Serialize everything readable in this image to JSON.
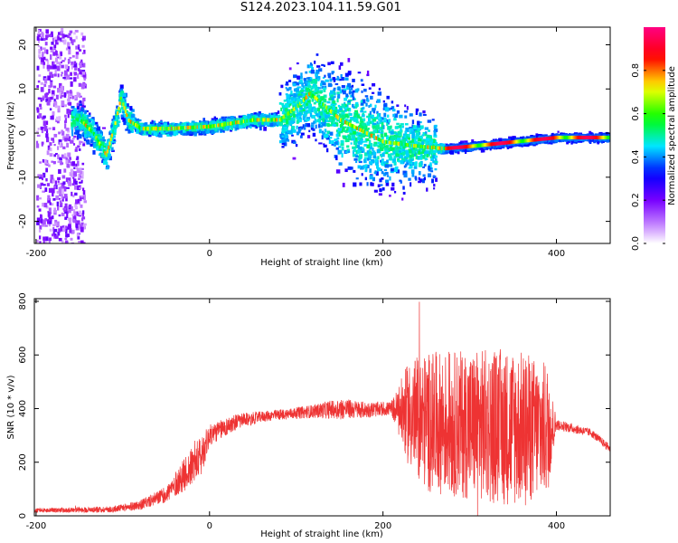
{
  "figure": {
    "title": "S124.2023.104.11.59.G01"
  },
  "chart_data": [
    {
      "type": "heatmap",
      "xlabel": "Height of straight line (km)",
      "ylabel": "Frequency (Hz)",
      "xlim": [
        -202,
        462
      ],
      "ylim": [
        -25,
        24
      ],
      "xticks": [
        -200,
        0,
        200,
        400
      ],
      "yticks": [
        -20,
        -10,
        0,
        10,
        20
      ],
      "colorbar": {
        "label": "Normalized spectral amplitude",
        "range": [
          0.0,
          1.0
        ],
        "ticks": [
          0.0,
          0.2,
          0.4,
          0.6,
          0.8
        ],
        "tick_labels": [
          "0.0",
          "0.2",
          "0.4",
          "0.6",
          "0.8"
        ],
        "colormap": [
          "#ffffff",
          "#8800ff",
          "#0000ff",
          "#00ffff",
          "#00ff00",
          "#ffff00",
          "#ff0000",
          "#ff0088"
        ]
      },
      "ridge": {
        "x": [
          -150,
          -135,
          -120,
          -110,
          -103,
          -95,
          -80,
          -50,
          0,
          50,
          80,
          100,
          115,
          150,
          200,
          240,
          270,
          300,
          350,
          400,
          462
        ],
        "y": [
          3,
          0,
          -5,
          2,
          8,
          3,
          1,
          1,
          1.5,
          3,
          3,
          6,
          9,
          3,
          -2,
          -3,
          -3.5,
          -3,
          -2,
          -1,
          -1
        ]
      }
    },
    {
      "type": "line",
      "xlabel": "Height of straight line (km)",
      "ylabel": "SNR (10 * v/v)",
      "xlim": [
        -202,
        462
      ],
      "ylim": [
        0,
        810
      ],
      "xticks": [
        -200,
        0,
        200,
        400
      ],
      "yticks": [
        0,
        200,
        400,
        600,
        800
      ],
      "series": [
        {
          "color": "#ee3333",
          "envelope_x": [
            -202,
            -150,
            -110,
            -80,
            -50,
            -30,
            -10,
            0,
            30,
            60,
            90,
            120,
            150,
            180,
            210,
            230,
            250,
            300,
            350,
            390,
            400,
            440,
            462
          ],
          "center": [
            20,
            22,
            25,
            40,
            80,
            150,
            220,
            300,
            350,
            370,
            380,
            390,
            400,
            395,
            400,
            380,
            350,
            340,
            330,
            320,
            340,
            310,
            250
          ],
          "amplitude": [
            8,
            10,
            12,
            18,
            30,
            60,
            80,
            40,
            30,
            20,
            20,
            25,
            40,
            30,
            25,
            200,
            260,
            280,
            300,
            250,
            20,
            15,
            15
          ]
        }
      ]
    }
  ]
}
